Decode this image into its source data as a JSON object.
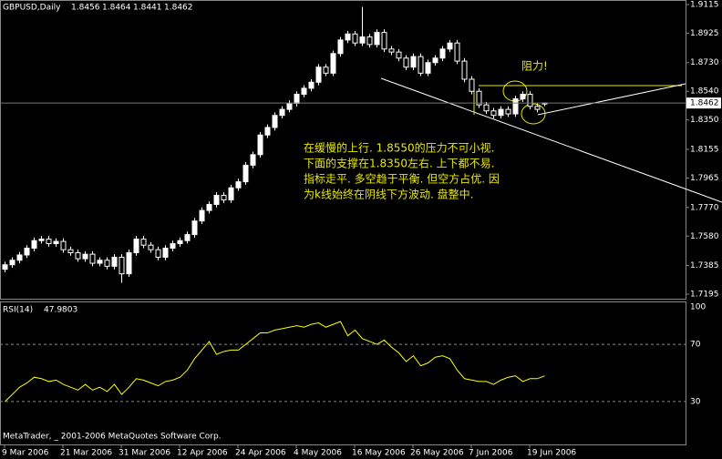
{
  "chart_data": [
    {
      "type": "candlestick",
      "title": "GBPUSD,Daily",
      "open": [
        1.736,
        1.739,
        1.742,
        1.7455,
        1.75,
        1.755,
        1.756,
        1.753,
        1.7545,
        1.749,
        1.747,
        1.743,
        1.746,
        1.74,
        1.742,
        1.738,
        1.744,
        1.733,
        1.747,
        1.756,
        1.752,
        1.749,
        1.744,
        1.75,
        1.753,
        1.755,
        1.759,
        1.768,
        1.775,
        1.779,
        1.785,
        1.782,
        1.79,
        1.794,
        1.805,
        1.812,
        1.825,
        1.83,
        1.838,
        1.842,
        1.846,
        1.852,
        1.856,
        1.86,
        1.87,
        1.866,
        1.879,
        1.888,
        1.892,
        1.886,
        1.89,
        1.885,
        1.893,
        1.882,
        1.88,
        1.876,
        1.87,
        1.877,
        1.866,
        1.873,
        1.876,
        1.882,
        1.886,
        1.874,
        1.862,
        1.854,
        1.845,
        1.841,
        1.838,
        1.842,
        1.839,
        1.849,
        1.852,
        1.844,
        1.8456
      ],
      "high": [
        1.741,
        1.744,
        1.7475,
        1.752,
        1.757,
        1.758,
        1.758,
        1.7565,
        1.7565,
        1.751,
        1.749,
        1.748,
        1.748,
        1.744,
        1.744,
        1.746,
        1.746,
        1.749,
        1.758,
        1.758,
        1.754,
        1.751,
        1.752,
        1.755,
        1.757,
        1.761,
        1.77,
        1.777,
        1.781,
        1.787,
        1.787,
        1.792,
        1.796,
        1.807,
        1.814,
        1.827,
        1.832,
        1.84,
        1.844,
        1.848,
        1.854,
        1.858,
        1.862,
        1.872,
        1.872,
        1.881,
        1.89,
        1.894,
        1.894,
        1.91,
        1.892,
        1.895,
        1.895,
        1.884,
        1.882,
        1.878,
        1.879,
        1.879,
        1.875,
        1.878,
        1.884,
        1.888,
        1.888,
        1.876,
        1.864,
        1.856,
        1.847,
        1.843,
        1.844,
        1.844,
        1.851,
        1.854,
        1.854,
        1.846,
        1.8464
      ],
      "low": [
        1.734,
        1.737,
        1.74,
        1.7435,
        1.748,
        1.753,
        1.751,
        1.751,
        1.747,
        1.745,
        1.741,
        1.741,
        1.738,
        1.738,
        1.736,
        1.736,
        1.727,
        1.731,
        1.745,
        1.75,
        1.747,
        1.742,
        1.742,
        1.748,
        1.751,
        1.753,
        1.757,
        1.766,
        1.773,
        1.777,
        1.78,
        1.78,
        1.788,
        1.792,
        1.803,
        1.81,
        1.823,
        1.828,
        1.836,
        1.84,
        1.844,
        1.85,
        1.854,
        1.858,
        1.864,
        1.864,
        1.877,
        1.886,
        1.884,
        1.884,
        1.883,
        1.883,
        1.88,
        1.878,
        1.874,
        1.868,
        1.868,
        1.864,
        1.864,
        1.871,
        1.874,
        1.88,
        1.872,
        1.86,
        1.852,
        1.843,
        1.839,
        1.836,
        1.836,
        1.837,
        1.837,
        1.847,
        1.842,
        1.84,
        1.8441
      ],
      "close": [
        1.739,
        1.742,
        1.7455,
        1.75,
        1.755,
        1.756,
        1.753,
        1.7545,
        1.749,
        1.747,
        1.743,
        1.746,
        1.74,
        1.742,
        1.738,
        1.744,
        1.733,
        1.747,
        1.756,
        1.752,
        1.749,
        1.744,
        1.75,
        1.753,
        1.755,
        1.759,
        1.768,
        1.775,
        1.779,
        1.785,
        1.782,
        1.79,
        1.794,
        1.805,
        1.812,
        1.825,
        1.83,
        1.838,
        1.842,
        1.846,
        1.852,
        1.856,
        1.86,
        1.87,
        1.866,
        1.879,
        1.888,
        1.892,
        1.886,
        1.89,
        1.885,
        1.893,
        1.882,
        1.88,
        1.876,
        1.87,
        1.877,
        1.866,
        1.873,
        1.876,
        1.882,
        1.886,
        1.874,
        1.862,
        1.854,
        1.845,
        1.841,
        1.838,
        1.842,
        1.839,
        1.849,
        1.852,
        1.844,
        1.842,
        1.8462
      ],
      "up_color": "#ffffff",
      "down_color": "#000000",
      "wick_color": "#ffffff",
      "xlim": [
        -0.625,
        93.375
      ],
      "xticks": [
        {
          "value": 0,
          "label": "9 Mar 2006"
        },
        {
          "value": 8,
          "label": "21 Mar 2006"
        },
        {
          "value": 16,
          "label": "31 Mar 2006"
        },
        {
          "value": 24,
          "label": "12 Apr 2006"
        },
        {
          "value": 32,
          "label": "24 Apr 2006"
        },
        {
          "value": 40,
          "label": "4 May 2006"
        },
        {
          "value": 48,
          "label": "16 May 2006"
        },
        {
          "value": 56,
          "label": "26 May 2006"
        },
        {
          "value": 64,
          "label": "7 Jun 2006"
        },
        {
          "value": 72,
          "label": "19 Jun 2006"
        }
      ],
      "ylim": [
        1.7165,
        1.9145
      ],
      "yticks": [
        1.9115,
        1.8925,
        {
          "value": 1.873,
          "label": "1.8730"
        },
        {
          "value": 1.854,
          "label": "1.8540"
        },
        {
          "value": 1.835,
          "label": "1.8350"
        },
        1.8155,
        1.7965,
        {
          "value": 1.777,
          "label": "1.7770"
        },
        {
          "value": 1.758,
          "label": "1.7580"
        },
        1.7385,
        1.7195
      ],
      "annotations": [
        "阻力!",
        "在缓慢的上行. 1.8550的压力不可小视.",
        "下面的支撑在1.8350左右. 上下都不易.",
        "指标走平. 多空趋于平衡. 但空方占优. 因",
        "为k线始终在阴线下方波动. 盘整中."
      ],
      "footer": "MetaTrader, _ 2001-2006 MetaQuotes Software Corp."
    },
    {
      "type": "line",
      "title": "RSI(14)",
      "color": "#ffff00",
      "values": [
        30,
        35,
        40,
        43,
        47,
        46,
        44,
        45,
        42,
        40,
        38,
        42,
        38,
        40,
        37,
        42,
        35,
        40,
        46,
        45,
        43,
        41,
        44,
        45,
        47,
        52,
        60,
        66,
        72,
        63,
        65,
        66,
        66,
        70,
        74,
        78,
        78,
        80,
        81,
        82,
        83,
        82,
        84,
        85,
        82,
        84,
        86,
        76,
        80,
        74,
        72,
        70,
        73,
        68,
        64,
        58,
        62,
        55,
        57,
        61,
        62,
        60,
        52,
        46,
        45,
        44,
        44,
        42,
        45,
        47,
        48,
        44,
        46,
        46,
        47.9803
      ],
      "ylim": [
        0,
        100
      ],
      "yticks": [
        100,
        70,
        30
      ]
    }
  ]
}
